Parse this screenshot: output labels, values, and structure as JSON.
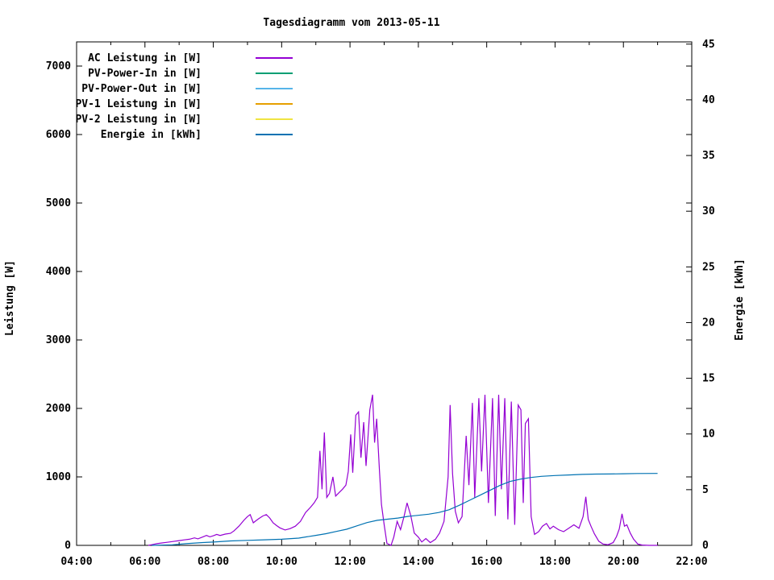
{
  "window": {
    "title": "Tagesdiagramm vom 2013-05-11"
  },
  "chart_data": {
    "type": "line",
    "title": "Tagesdiagramm vom 2013-05-11",
    "xlabel": "",
    "ylabel": "Leistung [W]",
    "y2label": "Energie [kWh]",
    "x_range": [
      4,
      22
    ],
    "ylim": [
      0,
      7353
    ],
    "y2lim": [
      0,
      45.2
    ],
    "grid": false,
    "legend_position": "top-left",
    "x_major_ticks": [
      {
        "h": 4,
        "label": "04:00"
      },
      {
        "h": 6,
        "label": "06:00"
      },
      {
        "h": 8,
        "label": "08:00"
      },
      {
        "h": 10,
        "label": "10:00"
      },
      {
        "h": 12,
        "label": "12:00"
      },
      {
        "h": 14,
        "label": "14:00"
      },
      {
        "h": 16,
        "label": "16:00"
      },
      {
        "h": 18,
        "label": "18:00"
      },
      {
        "h": 20,
        "label": "20:00"
      },
      {
        "h": 22,
        "label": "22:00"
      }
    ],
    "x_minor_ticks": [
      5,
      7,
      9,
      11,
      13,
      15,
      17,
      19,
      21
    ],
    "y_ticks": [
      0,
      1000,
      2000,
      3000,
      4000,
      5000,
      6000,
      7000
    ],
    "y2_ticks": [
      0,
      5,
      10,
      15,
      20,
      25,
      30,
      35,
      40,
      45
    ],
    "series": [
      {
        "id": "ac-leistung",
        "name": "AC Leistung in [W]",
        "color": "#9400D3",
        "axis": "y",
        "points": [
          [
            6.1,
            0
          ],
          [
            6.2,
            10
          ],
          [
            6.35,
            25
          ],
          [
            6.5,
            35
          ],
          [
            6.65,
            45
          ],
          [
            6.8,
            55
          ],
          [
            7.0,
            70
          ],
          [
            7.15,
            80
          ],
          [
            7.3,
            90
          ],
          [
            7.45,
            110
          ],
          [
            7.55,
            95
          ],
          [
            7.7,
            125
          ],
          [
            7.8,
            145
          ],
          [
            7.9,
            125
          ],
          [
            8.0,
            140
          ],
          [
            8.1,
            160
          ],
          [
            8.2,
            145
          ],
          [
            8.35,
            165
          ],
          [
            8.5,
            175
          ],
          [
            8.6,
            210
          ],
          [
            8.75,
            280
          ],
          [
            8.9,
            370
          ],
          [
            9.0,
            420
          ],
          [
            9.08,
            450
          ],
          [
            9.17,
            330
          ],
          [
            9.25,
            360
          ],
          [
            9.33,
            390
          ],
          [
            9.45,
            430
          ],
          [
            9.55,
            450
          ],
          [
            9.65,
            400
          ],
          [
            9.75,
            330
          ],
          [
            9.85,
            290
          ],
          [
            9.95,
            255
          ],
          [
            10.1,
            225
          ],
          [
            10.25,
            245
          ],
          [
            10.4,
            280
          ],
          [
            10.55,
            350
          ],
          [
            10.7,
            480
          ],
          [
            10.85,
            560
          ],
          [
            10.95,
            620
          ],
          [
            11.05,
            700
          ],
          [
            11.12,
            1380
          ],
          [
            11.18,
            820
          ],
          [
            11.25,
            1650
          ],
          [
            11.32,
            700
          ],
          [
            11.4,
            760
          ],
          [
            11.5,
            1000
          ],
          [
            11.58,
            720
          ],
          [
            11.68,
            770
          ],
          [
            11.78,
            820
          ],
          [
            11.88,
            880
          ],
          [
            11.95,
            1080
          ],
          [
            12.02,
            1620
          ],
          [
            12.08,
            1060
          ],
          [
            12.17,
            1900
          ],
          [
            12.25,
            1950
          ],
          [
            12.32,
            1280
          ],
          [
            12.4,
            1800
          ],
          [
            12.47,
            1160
          ],
          [
            12.58,
            1980
          ],
          [
            12.66,
            2200
          ],
          [
            12.72,
            1500
          ],
          [
            12.78,
            1850
          ],
          [
            12.86,
            1100
          ],
          [
            12.92,
            600
          ],
          [
            13.0,
            300
          ],
          [
            13.08,
            30
          ],
          [
            13.2,
            0
          ],
          [
            13.28,
            120
          ],
          [
            13.38,
            350
          ],
          [
            13.48,
            230
          ],
          [
            13.58,
            420
          ],
          [
            13.67,
            620
          ],
          [
            13.78,
            430
          ],
          [
            13.88,
            180
          ],
          [
            14.0,
            120
          ],
          [
            14.1,
            50
          ],
          [
            14.22,
            100
          ],
          [
            14.35,
            40
          ],
          [
            14.5,
            90
          ],
          [
            14.62,
            180
          ],
          [
            14.75,
            350
          ],
          [
            14.87,
            1000
          ],
          [
            14.93,
            2050
          ],
          [
            15.0,
            1050
          ],
          [
            15.08,
            500
          ],
          [
            15.17,
            330
          ],
          [
            15.28,
            420
          ],
          [
            15.4,
            1600
          ],
          [
            15.48,
            880
          ],
          [
            15.58,
            2080
          ],
          [
            15.65,
            700
          ],
          [
            15.77,
            2150
          ],
          [
            15.85,
            1080
          ],
          [
            15.95,
            2200
          ],
          [
            16.05,
            620
          ],
          [
            16.17,
            2150
          ],
          [
            16.25,
            430
          ],
          [
            16.35,
            2200
          ],
          [
            16.43,
            820
          ],
          [
            16.53,
            2150
          ],
          [
            16.62,
            380
          ],
          [
            16.72,
            2100
          ],
          [
            16.82,
            300
          ],
          [
            16.92,
            2050
          ],
          [
            17.0,
            1980
          ],
          [
            17.07,
            620
          ],
          [
            17.13,
            1780
          ],
          [
            17.22,
            1850
          ],
          [
            17.3,
            420
          ],
          [
            17.4,
            160
          ],
          [
            17.52,
            200
          ],
          [
            17.63,
            280
          ],
          [
            17.75,
            320
          ],
          [
            17.85,
            240
          ],
          [
            17.95,
            280
          ],
          [
            18.1,
            230
          ],
          [
            18.25,
            200
          ],
          [
            18.4,
            250
          ],
          [
            18.55,
            300
          ],
          [
            18.7,
            250
          ],
          [
            18.82,
            420
          ],
          [
            18.9,
            710
          ],
          [
            18.97,
            380
          ],
          [
            19.05,
            280
          ],
          [
            19.15,
            170
          ],
          [
            19.28,
            60
          ],
          [
            19.4,
            20
          ],
          [
            19.55,
            10
          ],
          [
            19.7,
            40
          ],
          [
            19.8,
            130
          ],
          [
            19.88,
            240
          ],
          [
            19.96,
            460
          ],
          [
            20.03,
            280
          ],
          [
            20.1,
            300
          ],
          [
            20.2,
            180
          ],
          [
            20.3,
            90
          ],
          [
            20.42,
            20
          ],
          [
            20.55,
            5
          ],
          [
            20.75,
            0
          ],
          [
            21.0,
            0
          ]
        ]
      },
      {
        "id": "pv-power-in",
        "name": "PV-Power-In in [W]",
        "color": "#009E73",
        "axis": "y",
        "points": []
      },
      {
        "id": "pv-power-out",
        "name": "PV-Power-Out in [W]",
        "color": "#56B4E9",
        "axis": "y",
        "points": []
      },
      {
        "id": "pv1-leistung",
        "name": "PV-1 Leistung in [W]",
        "color": "#E69F00",
        "axis": "y",
        "points": []
      },
      {
        "id": "pv2-leistung",
        "name": "PV-2 Leistung in [W]",
        "color": "#F0E442",
        "axis": "y",
        "points": []
      },
      {
        "id": "energie",
        "name": "Energie in [kWh]",
        "color": "#0072B2",
        "axis": "y2",
        "points": [
          [
            6.2,
            0
          ],
          [
            6.8,
            0.05
          ],
          [
            7.2,
            0.15
          ],
          [
            7.7,
            0.25
          ],
          [
            8.0,
            0.3
          ],
          [
            8.5,
            0.4
          ],
          [
            9.0,
            0.45
          ],
          [
            9.5,
            0.5
          ],
          [
            10.0,
            0.55
          ],
          [
            10.5,
            0.65
          ],
          [
            11.0,
            0.9
          ],
          [
            11.3,
            1.05
          ],
          [
            11.6,
            1.25
          ],
          [
            11.9,
            1.45
          ],
          [
            12.2,
            1.75
          ],
          [
            12.5,
            2.05
          ],
          [
            12.8,
            2.25
          ],
          [
            13.1,
            2.35
          ],
          [
            13.4,
            2.45
          ],
          [
            13.7,
            2.6
          ],
          [
            14.0,
            2.7
          ],
          [
            14.3,
            2.8
          ],
          [
            14.6,
            2.95
          ],
          [
            14.9,
            3.2
          ],
          [
            15.2,
            3.6
          ],
          [
            15.5,
            4.05
          ],
          [
            15.8,
            4.5
          ],
          [
            16.1,
            4.95
          ],
          [
            16.4,
            5.4
          ],
          [
            16.7,
            5.75
          ],
          [
            17.0,
            5.95
          ],
          [
            17.3,
            6.1
          ],
          [
            17.6,
            6.2
          ],
          [
            18.0,
            6.27
          ],
          [
            18.4,
            6.32
          ],
          [
            18.8,
            6.37
          ],
          [
            19.2,
            6.4
          ],
          [
            19.6,
            6.41
          ],
          [
            20.0,
            6.43
          ],
          [
            20.4,
            6.45
          ],
          [
            21.0,
            6.46
          ]
        ]
      }
    ]
  }
}
